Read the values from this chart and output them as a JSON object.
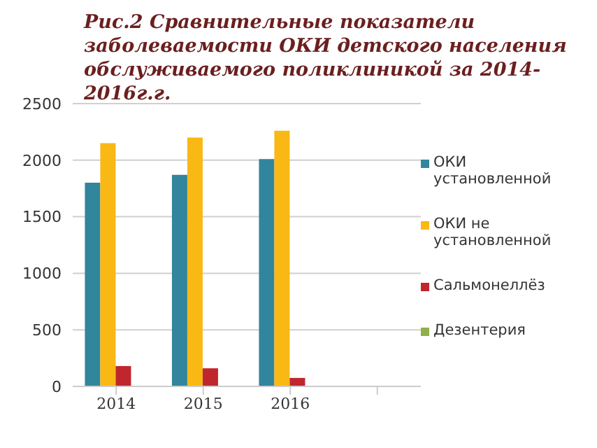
{
  "chart_data": {
    "type": "bar",
    "title": "Рис.2 Сравнительные показатели заболеваемости ОКИ детского населения обслуживаемого поликлиникой за 2014-2016г.г.",
    "categories": [
      "2014",
      "2015",
      "2016",
      null
    ],
    "series": [
      {
        "name": "ОКИ установленной",
        "color": "#31859c",
        "values": [
          1800,
          1870,
          2010,
          null
        ]
      },
      {
        "name": "ОКИ не установленной",
        "color": "#f9b814",
        "values": [
          2150,
          2200,
          2260,
          null
        ]
      },
      {
        "name": "Сальмонеллёз",
        "color": "#c0262d",
        "values": [
          180,
          160,
          75,
          null
        ]
      },
      {
        "name": "Дезентерия",
        "color": "#8fb04a",
        "values": [
          null,
          null,
          null,
          null
        ]
      }
    ],
    "ylim": [
      0,
      2500
    ],
    "yticks": [
      0,
      500,
      1000,
      1500,
      2000,
      2500
    ],
    "grid": "y",
    "legend": "right"
  }
}
